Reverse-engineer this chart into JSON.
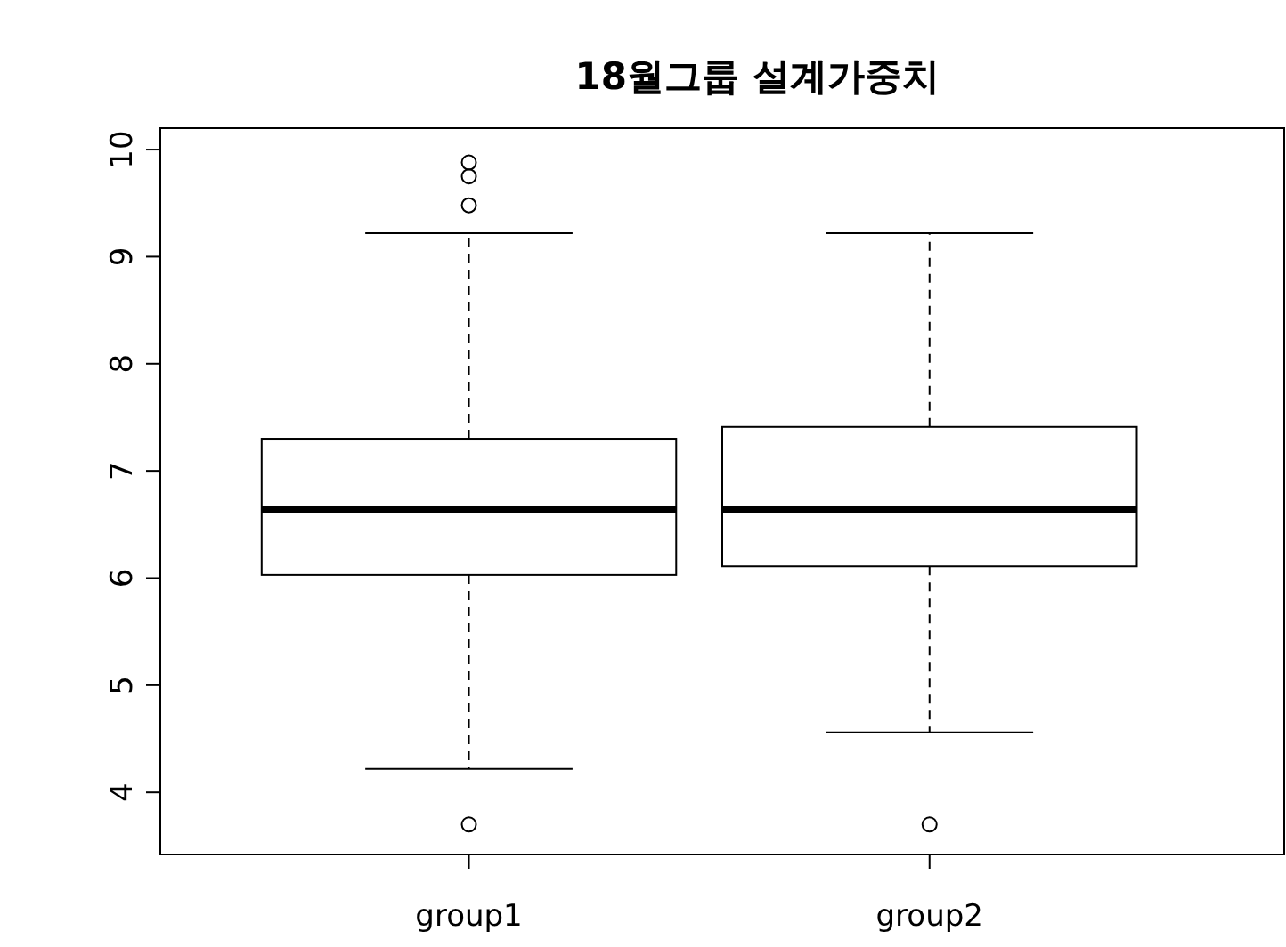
{
  "chart_data": {
    "type": "box",
    "title": "18월그룹 설계가중치",
    "categories": [
      "group1",
      "group2"
    ],
    "boxes": [
      {
        "low": 4.22,
        "q1": 6.03,
        "median": 6.64,
        "q3": 7.3,
        "high": 9.22,
        "outliers": [
          9.48,
          9.75,
          9.88,
          3.7
        ]
      },
      {
        "low": 4.56,
        "q1": 6.11,
        "median": 6.64,
        "q3": 7.41,
        "high": 9.22,
        "outliers": [
          3.7
        ]
      }
    ],
    "ylim": [
      3.42,
      10.2
    ],
    "yticks": [
      4,
      5,
      6,
      7,
      8,
      9,
      10
    ]
  }
}
